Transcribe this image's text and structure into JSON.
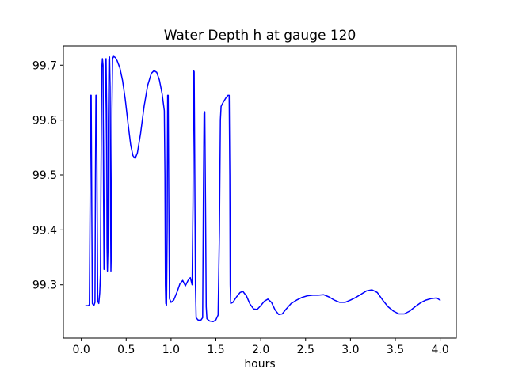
{
  "chart_data": {
    "type": "line",
    "title": "Water Depth h at gauge 120",
    "xlabel": "hours",
    "ylabel": "",
    "xlim": [
      -0.2,
      4.18
    ],
    "ylim": [
      99.203,
      99.735
    ],
    "x_ticks": [
      0.0,
      0.5,
      1.0,
      1.5,
      2.0,
      2.5,
      3.0,
      3.5,
      4.0
    ],
    "y_ticks": [
      99.3,
      99.4,
      99.5,
      99.6,
      99.7
    ],
    "grid": false,
    "legend_position": "none",
    "line_color": "#0000ff",
    "frame_color": "#000000",
    "background_color": "#ffffff",
    "series": [
      {
        "name": "h",
        "color": "#0000ff",
        "points": [
          [
            0.05,
            99.262
          ],
          [
            0.08,
            99.262
          ],
          [
            0.09,
            99.264
          ],
          [
            0.098,
            99.45
          ],
          [
            0.103,
            99.645
          ],
          [
            0.11,
            99.645
          ],
          [
            0.117,
            99.43
          ],
          [
            0.123,
            99.266
          ],
          [
            0.14,
            99.262
          ],
          [
            0.152,
            99.268
          ],
          [
            0.158,
            99.5
          ],
          [
            0.163,
            99.645
          ],
          [
            0.17,
            99.645
          ],
          [
            0.177,
            99.42
          ],
          [
            0.183,
            99.27
          ],
          [
            0.195,
            99.266
          ],
          [
            0.205,
            99.285
          ],
          [
            0.213,
            99.32
          ],
          [
            0.22,
            99.52
          ],
          [
            0.228,
            99.695
          ],
          [
            0.235,
            99.712
          ],
          [
            0.242,
            99.7
          ],
          [
            0.248,
            99.46
          ],
          [
            0.253,
            99.328
          ],
          [
            0.258,
            99.33
          ],
          [
            0.264,
            99.55
          ],
          [
            0.27,
            99.705
          ],
          [
            0.276,
            99.712
          ],
          [
            0.282,
            99.62
          ],
          [
            0.287,
            99.37
          ],
          [
            0.291,
            99.325
          ],
          [
            0.296,
            99.36
          ],
          [
            0.302,
            99.6
          ],
          [
            0.308,
            99.71
          ],
          [
            0.315,
            99.715
          ],
          [
            0.321,
            99.66
          ],
          [
            0.326,
            99.42
          ],
          [
            0.33,
            99.325
          ],
          [
            0.335,
            99.37
          ],
          [
            0.341,
            99.62
          ],
          [
            0.348,
            99.712
          ],
          [
            0.36,
            99.716
          ],
          [
            0.38,
            99.714
          ],
          [
            0.4,
            99.708
          ],
          [
            0.43,
            99.695
          ],
          [
            0.46,
            99.672
          ],
          [
            0.49,
            99.638
          ],
          [
            0.52,
            99.595
          ],
          [
            0.55,
            99.555
          ],
          [
            0.575,
            99.535
          ],
          [
            0.6,
            99.53
          ],
          [
            0.625,
            99.54
          ],
          [
            0.66,
            99.575
          ],
          [
            0.7,
            99.625
          ],
          [
            0.74,
            99.663
          ],
          [
            0.78,
            99.685
          ],
          [
            0.81,
            99.69
          ],
          [
            0.84,
            99.687
          ],
          [
            0.87,
            99.673
          ],
          [
            0.9,
            99.648
          ],
          [
            0.925,
            99.617
          ],
          [
            0.932,
            99.5
          ],
          [
            0.937,
            99.3
          ],
          [
            0.942,
            99.266
          ],
          [
            0.95,
            99.263
          ],
          [
            0.957,
            99.4
          ],
          [
            0.962,
            99.645
          ],
          [
            0.968,
            99.645
          ],
          [
            0.975,
            99.45
          ],
          [
            0.982,
            99.275
          ],
          [
            1.0,
            99.268
          ],
          [
            1.03,
            99.272
          ],
          [
            1.07,
            99.288
          ],
          [
            1.1,
            99.302
          ],
          [
            1.13,
            99.308
          ],
          [
            1.16,
            99.298
          ],
          [
            1.19,
            99.308
          ],
          [
            1.215,
            99.313
          ],
          [
            1.235,
            99.3
          ],
          [
            1.245,
            99.45
          ],
          [
            1.252,
            99.69
          ],
          [
            1.258,
            99.688
          ],
          [
            1.265,
            99.5
          ],
          [
            1.272,
            99.3
          ],
          [
            1.28,
            99.24
          ],
          [
            1.3,
            99.236
          ],
          [
            1.33,
            99.235
          ],
          [
            1.352,
            99.24
          ],
          [
            1.36,
            99.45
          ],
          [
            1.368,
            99.612
          ],
          [
            1.376,
            99.615
          ],
          [
            1.384,
            99.45
          ],
          [
            1.392,
            99.26
          ],
          [
            1.4,
            99.238
          ],
          [
            1.43,
            99.234
          ],
          [
            1.47,
            99.233
          ],
          [
            1.5,
            99.236
          ],
          [
            1.525,
            99.245
          ],
          [
            1.54,
            99.4
          ],
          [
            1.55,
            99.6
          ],
          [
            1.558,
            99.625
          ],
          [
            1.58,
            99.632
          ],
          [
            1.61,
            99.64
          ],
          [
            1.635,
            99.645
          ],
          [
            1.648,
            99.645
          ],
          [
            1.655,
            99.5
          ],
          [
            1.66,
            99.3
          ],
          [
            1.665,
            99.266
          ],
          [
            1.69,
            99.268
          ],
          [
            1.73,
            99.278
          ],
          [
            1.77,
            99.286
          ],
          [
            1.8,
            99.288
          ],
          [
            1.84,
            99.28
          ],
          [
            1.88,
            99.265
          ],
          [
            1.92,
            99.256
          ],
          [
            1.96,
            99.255
          ],
          [
            2.0,
            99.262
          ],
          [
            2.04,
            99.27
          ],
          [
            2.08,
            99.274
          ],
          [
            2.12,
            99.268
          ],
          [
            2.16,
            99.254
          ],
          [
            2.2,
            99.246
          ],
          [
            2.24,
            99.247
          ],
          [
            2.28,
            99.255
          ],
          [
            2.34,
            99.266
          ],
          [
            2.4,
            99.272
          ],
          [
            2.46,
            99.277
          ],
          [
            2.52,
            99.28
          ],
          [
            2.58,
            99.281
          ],
          [
            2.64,
            99.281
          ],
          [
            2.7,
            99.282
          ],
          [
            2.76,
            99.278
          ],
          [
            2.82,
            99.272
          ],
          [
            2.88,
            99.268
          ],
          [
            2.94,
            99.268
          ],
          [
            3.0,
            99.272
          ],
          [
            3.06,
            99.277
          ],
          [
            3.12,
            99.283
          ],
          [
            3.18,
            99.289
          ],
          [
            3.24,
            99.291
          ],
          [
            3.3,
            99.286
          ],
          [
            3.36,
            99.272
          ],
          [
            3.42,
            99.26
          ],
          [
            3.48,
            99.252
          ],
          [
            3.54,
            99.247
          ],
          [
            3.6,
            99.247
          ],
          [
            3.66,
            99.252
          ],
          [
            3.72,
            99.26
          ],
          [
            3.78,
            99.267
          ],
          [
            3.84,
            99.272
          ],
          [
            3.9,
            99.275
          ],
          [
            3.96,
            99.276
          ],
          [
            4.0,
            99.272
          ]
        ]
      }
    ]
  }
}
